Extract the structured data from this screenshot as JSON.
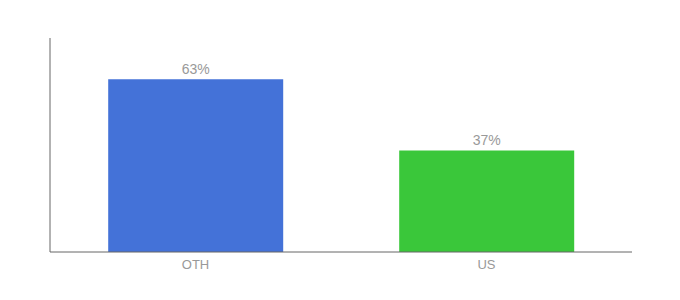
{
  "chart_data": {
    "type": "bar",
    "categories": [
      "OTH",
      "US"
    ],
    "values": [
      63,
      37
    ],
    "value_labels": [
      "63%",
      "37%"
    ],
    "colors": [
      "#4472d8",
      "#3ac73a"
    ],
    "ylim": [
      0,
      78
    ],
    "data_labels": true,
    "tick_labels": "x",
    "grid": false
  }
}
